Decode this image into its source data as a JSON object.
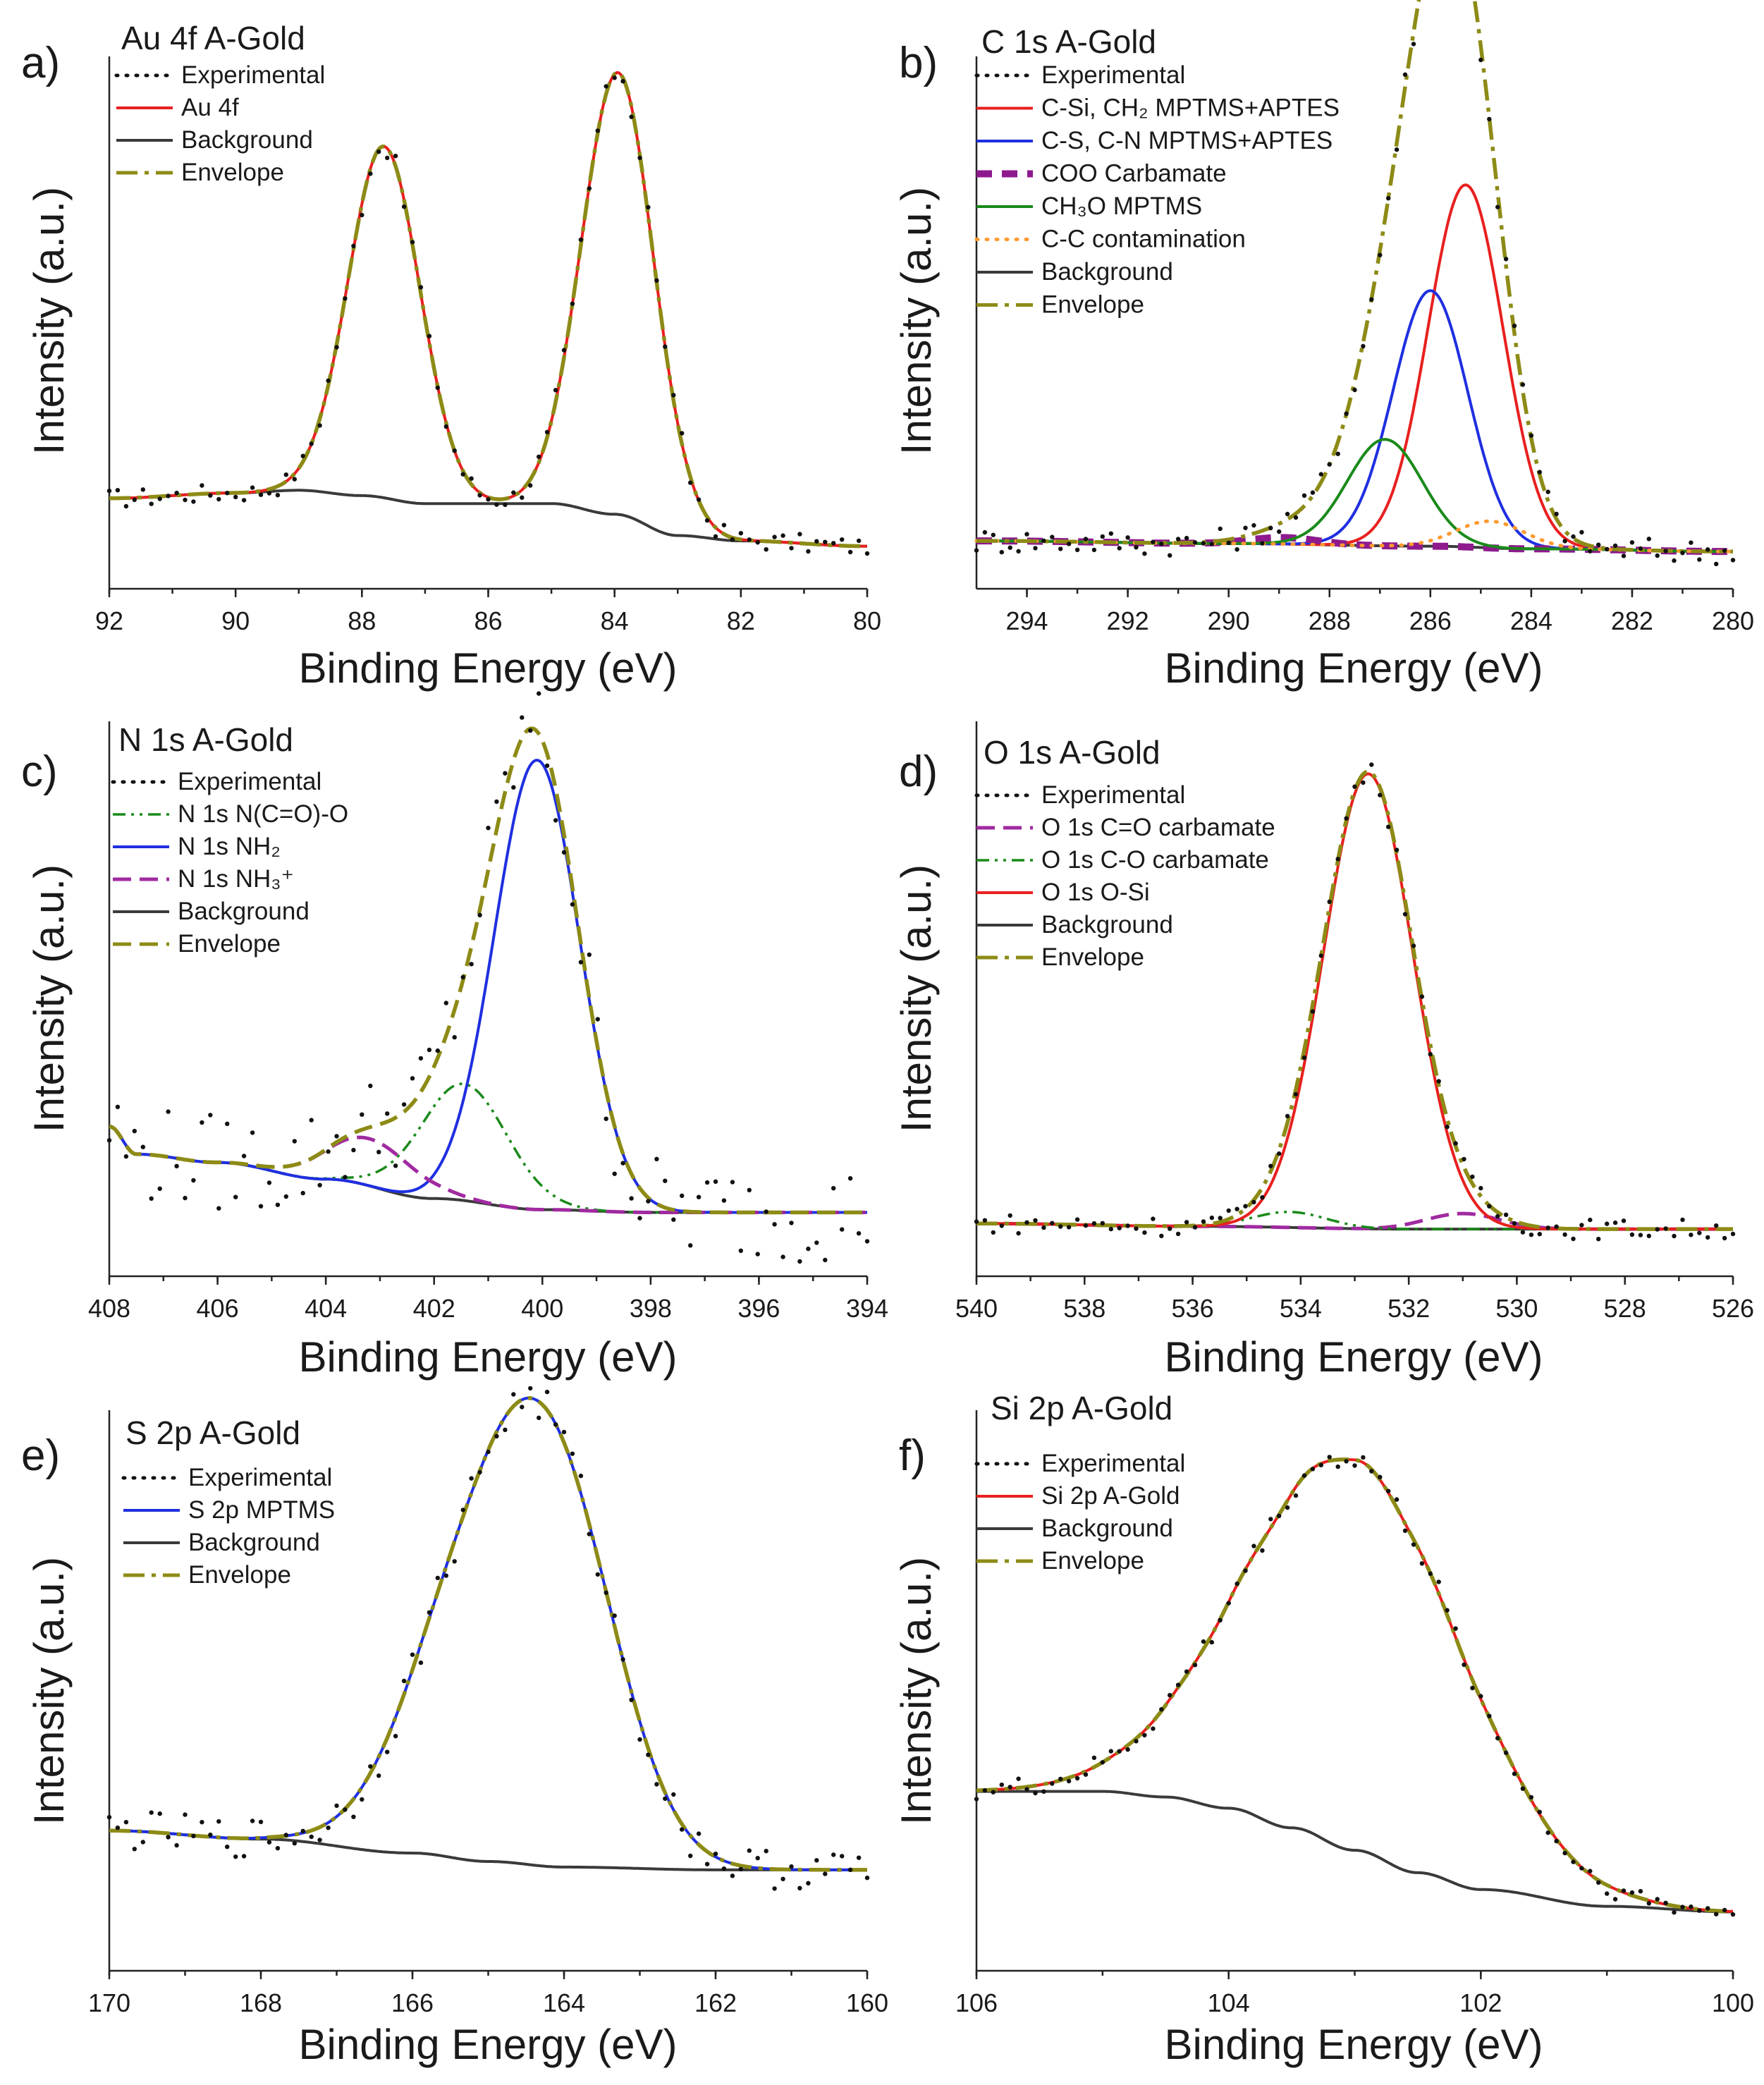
{
  "figure": {
    "description_hidden": false
  },
  "chart_data": [
    {
      "type": "line",
      "panel_letter": "a)",
      "title": "Au 4f A-Gold",
      "xlabel": "Binding Energy (eV)",
      "ylabel": "Intensity (a.u.)",
      "xlim": [
        92,
        80
      ],
      "ylim": [
        0,
        1
      ],
      "xticks": [
        92,
        90,
        88,
        86,
        84,
        82,
        80
      ],
      "legend": [
        {
          "label": "Experimental",
          "style": "dots",
          "color": "#111111"
        },
        {
          "label": "Au 4f",
          "style": "solid",
          "color": "#e8201f"
        },
        {
          "label": "Background",
          "style": "solid",
          "color": "#3a3a3a"
        },
        {
          "label": "Envelope",
          "style": "dashdot",
          "color": "#8d8b16"
        }
      ],
      "background": {
        "x": [
          92,
          90,
          89,
          88,
          87,
          86,
          85,
          84,
          83,
          82,
          80
        ],
        "y": [
          0.17,
          0.18,
          0.185,
          0.175,
          0.16,
          0.16,
          0.16,
          0.14,
          0.1,
          0.09,
          0.08
        ]
      },
      "components": [
        {
          "name": "Au 4f",
          "color": "#e8201f",
          "style": "solid",
          "peaks": [
            {
              "center": 87.65,
              "height": 0.66,
              "fwhm": 1.35
            },
            {
              "center": 83.95,
              "height": 0.83,
              "fwhm": 1.35
            }
          ],
          "on_background": true
        }
      ],
      "envelope": {
        "color": "#8d8b16",
        "style": "dashdot"
      },
      "experimental": {
        "noise": 0.006
      }
    },
    {
      "type": "line",
      "panel_letter": "b)",
      "title": "C 1s A-Gold",
      "xlabel": "Binding Energy (eV)",
      "ylabel": "Intensity (a.u.)",
      "xlim": [
        295,
        280
      ],
      "ylim": [
        0,
        1
      ],
      "xticks": [
        294,
        292,
        290,
        288,
        286,
        284,
        282,
        280
      ],
      "legend": [
        {
          "label": "Experimental",
          "style": "dots",
          "color": "#111111"
        },
        {
          "label": "C-Si, CH₂ MPTMS+APTES",
          "style": "solid",
          "color": "#e8201f"
        },
        {
          "label": "C-S, C-N MPTMS+APTES",
          "style": "solid",
          "color": "#1f2fe0"
        },
        {
          "label": "COO  Carbamate",
          "style": "thickdash",
          "color": "#8e1a8e"
        },
        {
          "label": "CH₃O MPTMS",
          "style": "solid",
          "color": "#1a8a1a"
        },
        {
          "label": "C-C contamination",
          "style": "dots",
          "color": "#ff9a30"
        },
        {
          "label": "Background",
          "style": "solid",
          "color": "#3a3a3a"
        },
        {
          "label": "Envelope",
          "style": "dashdot",
          "color": "#8d8b16"
        }
      ],
      "background": {
        "x": [
          295,
          290,
          286,
          284,
          280
        ],
        "y": [
          0.09,
          0.085,
          0.08,
          0.075,
          0.07
        ]
      },
      "components": [
        {
          "name": "C-Si, CH2",
          "color": "#e8201f",
          "style": "solid",
          "peaks": [
            {
              "center": 285.3,
              "height": 0.68,
              "fwhm": 1.75
            }
          ],
          "on_background": true
        },
        {
          "name": "C-S, C-N",
          "color": "#1f2fe0",
          "style": "solid",
          "peaks": [
            {
              "center": 286.0,
              "height": 0.48,
              "fwhm": 1.75
            }
          ],
          "on_background": true
        },
        {
          "name": "COO Carbamate",
          "color": "#8e1a8e",
          "style": "thickdash",
          "peaks": [
            {
              "center": 288.9,
              "height": 0.012,
              "fwhm": 1.6
            }
          ],
          "on_background": true
        },
        {
          "name": "CH3O",
          "color": "#1a8a1a",
          "style": "solid",
          "peaks": [
            {
              "center": 286.9,
              "height": 0.2,
              "fwhm": 1.75
            }
          ],
          "on_background": true
        },
        {
          "name": "C-C contamination",
          "color": "#ff9a30",
          "style": "dots",
          "peaks": [
            {
              "center": 284.8,
              "height": 0.05,
              "fwhm": 1.6
            }
          ],
          "on_background": true
        }
      ],
      "envelope": {
        "color": "#8d8b16",
        "style": "dashdot",
        "extra_peaks": [
          {
            "center": 286.5,
            "height": 0.12,
            "fwhm": 3.2
          }
        ]
      },
      "experimental": {
        "noise": 0.008
      }
    },
    {
      "type": "line",
      "panel_letter": "c)",
      "title": "N 1s A-Gold",
      "xlabel": "Binding Energy (eV)",
      "ylabel": "Intensity (a.u.)",
      "xlim": [
        408,
        394
      ],
      "ylim": [
        0,
        1
      ],
      "xticks": [
        408,
        406,
        404,
        402,
        400,
        398,
        396,
        394
      ],
      "legend": [
        {
          "label": "Experimental",
          "style": "dots",
          "color": "#111111"
        },
        {
          "label": "N 1s N(C=O)-O",
          "style": "dashdotdot",
          "color": "#1a8a1a"
        },
        {
          "label": "N 1s NH₂",
          "style": "solid",
          "color": "#1f2fe0"
        },
        {
          "label": "N 1s NH₃⁺",
          "style": "dash",
          "color": "#a02aa0"
        },
        {
          "label": "Background",
          "style": "solid",
          "color": "#3a3a3a"
        },
        {
          "label": "Envelope",
          "style": "dash",
          "color": "#8d8b16"
        }
      ],
      "background": {
        "x": [
          408,
          407.5,
          406,
          404,
          402,
          400,
          398,
          396,
          394
        ],
        "y": [
          0.27,
          0.22,
          0.205,
          0.175,
          0.14,
          0.12,
          0.115,
          0.115,
          0.115
        ]
      },
      "components": [
        {
          "name": "N 1s N(C=O)-O",
          "color": "#1a8a1a",
          "style": "dashdotdot",
          "peaks": [
            {
              "center": 401.45,
              "height": 0.21,
              "fwhm": 1.9
            }
          ],
          "on_background": true
        },
        {
          "name": "N 1s NH2",
          "color": "#1f2fe0",
          "style": "solid",
          "peaks": [
            {
              "center": 400.1,
              "height": 0.81,
              "fwhm": 1.85
            }
          ],
          "on_background": true
        },
        {
          "name": "N 1s NH3+",
          "color": "#a02aa0",
          "style": "dash",
          "peaks": [
            {
              "center": 403.2,
              "height": 0.085,
              "fwhm": 1.9
            }
          ],
          "on_background": true
        }
      ],
      "envelope": {
        "color": "#8d8b16",
        "style": "dash"
      },
      "experimental": {
        "noise": 0.03
      }
    },
    {
      "type": "line",
      "panel_letter": "d)",
      "title": "O 1s A-Gold",
      "xlabel": "Binding Energy (eV)",
      "ylabel": "Intensity (a.u.)",
      "xlim": [
        540,
        526
      ],
      "ylim": [
        0,
        1
      ],
      "xticks": [
        540,
        538,
        536,
        534,
        532,
        530,
        528,
        526
      ],
      "legend": [
        {
          "label": "Experimental",
          "style": "dots",
          "color": "#111111"
        },
        {
          "label": "O 1s C=O carbamate",
          "style": "dash",
          "color": "#a02aa0"
        },
        {
          "label": "O 1s C-O carbamate",
          "style": "dashdotdot",
          "color": "#1a8a1a"
        },
        {
          "label": "O 1s O-Si",
          "style": "solid",
          "color": "#e8201f"
        },
        {
          "label": "Background",
          "style": "solid",
          "color": "#3a3a3a"
        },
        {
          "label": "Envelope",
          "style": "dashdot",
          "color": "#8d8b16"
        }
      ],
      "background": {
        "x": [
          540,
          536,
          532,
          528,
          526
        ],
        "y": [
          0.095,
          0.09,
          0.085,
          0.085,
          0.085
        ]
      },
      "components": [
        {
          "name": "O 1s C=O carbamate",
          "color": "#a02aa0",
          "style": "dash",
          "peaks": [
            {
              "center": 531.0,
              "height": 0.028,
              "fwhm": 1.6
            }
          ],
          "on_background": true
        },
        {
          "name": "O 1s C-O carbamate",
          "color": "#1a8a1a",
          "style": "dashdotdot",
          "peaks": [
            {
              "center": 534.2,
              "height": 0.028,
              "fwhm": 1.6
            }
          ],
          "on_background": true
        },
        {
          "name": "O 1s O-Si",
          "color": "#e8201f",
          "style": "solid",
          "peaks": [
            {
              "center": 532.75,
              "height": 0.82,
              "fwhm": 1.95
            }
          ],
          "on_background": true
        }
      ],
      "envelope": {
        "color": "#8d8b16",
        "style": "dashdot"
      },
      "experimental": {
        "noise": 0.006
      }
    },
    {
      "type": "line",
      "panel_letter": "e)",
      "title": "S 2p A-Gold",
      "xlabel": "Binding Energy (eV)",
      "ylabel": "Intensity (a.u.)",
      "xlim": [
        170,
        160
      ],
      "ylim": [
        0,
        1
      ],
      "xticks": [
        170,
        168,
        166,
        164,
        162,
        160
      ],
      "legend": [
        {
          "label": "Experimental",
          "style": "dots",
          "color": "#111111"
        },
        {
          "label": "S 2p MPTMS",
          "style": "solid",
          "color": "#1f2fe0"
        },
        {
          "label": "Background",
          "style": "solid",
          "color": "#3a3a3a"
        },
        {
          "label": "Envelope",
          "style": "dashdot",
          "color": "#8d8b16"
        }
      ],
      "background": {
        "x": [
          170,
          168,
          166,
          165,
          164,
          162,
          160
        ],
        "y": [
          0.25,
          0.235,
          0.21,
          0.195,
          0.185,
          0.18,
          0.18
        ]
      },
      "components": [
        {
          "name": "S 2p MPTMS",
          "color": "#1f2fe0",
          "style": "solid",
          "peaks": [
            {
              "center": 165.35,
              "height": 0.37,
              "fwhm": 1.95
            },
            {
              "center": 164.15,
              "height": 0.67,
              "fwhm": 1.95
            }
          ],
          "on_background": true
        }
      ],
      "envelope": {
        "color": "#8d8b16",
        "style": "dashdot"
      },
      "experimental": {
        "noise": 0.012
      }
    },
    {
      "type": "line",
      "panel_letter": "f)",
      "title": "Si 2p A-Gold",
      "xlabel": "Binding Energy (eV)",
      "ylabel": "Intensity (a.u.)",
      "xlim": [
        106,
        100
      ],
      "ylim": [
        0,
        1
      ],
      "xticks": [
        106,
        104,
        102,
        100
      ],
      "legend": [
        {
          "label": "Experimental",
          "style": "dots",
          "color": "#111111"
        },
        {
          "label": "Si 2p A-Gold",
          "style": "solid",
          "color": "#e8201f"
        },
        {
          "label": "Background",
          "style": "solid",
          "color": "#3a3a3a"
        },
        {
          "label": "Envelope",
          "style": "dashdot",
          "color": "#8d8b16"
        }
      ],
      "background": {
        "x": [
          106,
          105,
          104.5,
          104,
          103.5,
          103,
          102.5,
          102,
          101,
          100
        ],
        "y": [
          0.32,
          0.32,
          0.31,
          0.29,
          0.255,
          0.215,
          0.175,
          0.145,
          0.115,
          0.105
        ]
      },
      "components": [
        {
          "name": "Si 2p A-Gold",
          "color": "#e8201f",
          "style": "solid",
          "peaks": [
            {
              "center": 103.5,
              "height": 0.26,
              "fwhm": 1.85
            },
            {
              "center": 102.8,
              "height": 0.5,
              "fwhm": 1.85
            }
          ],
          "on_background": true
        }
      ],
      "envelope": {
        "color": "#8d8b16",
        "style": "dashdot"
      },
      "experimental": {
        "noise": 0.006
      }
    }
  ]
}
